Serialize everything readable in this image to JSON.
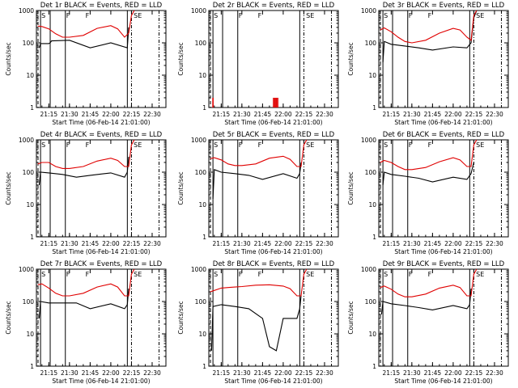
{
  "figure": {
    "shared_xlabel": "Start Time (06-Feb-14 21:01:00)",
    "shared_ylabel": "Counts/sec",
    "x_tick_labels": [
      "21:15",
      "21:30",
      "21:45",
      "22:00",
      "22:15",
      "22:30"
    ],
    "y_tick_labels": [
      "1",
      "10",
      "100",
      "1000"
    ],
    "region_markers": [
      "S",
      "F",
      "F",
      "SE"
    ],
    "colors": {
      "events": "#000000",
      "lld": "#e00000"
    }
  },
  "chart_data": [
    {
      "type": "line",
      "title": "Det 1r BLACK = Events, RED = LLD",
      "xlabel": "Start Time (06-Feb-14 21:01:00)",
      "ylabel": "Counts/sec",
      "ylog": true,
      "ylim": [
        1,
        1000
      ],
      "series": [
        {
          "name": "Events",
          "color": "#000000",
          "x": [
            "21:07",
            "21:08",
            "21:09",
            "21:15",
            "21:16",
            "21:17",
            "21:30",
            "21:45",
            "22:00",
            "22:12",
            "22:13"
          ],
          "values": [
            null,
            70,
            95,
            95,
            100,
            115,
            120,
            70,
            100,
            70,
            300
          ]
        },
        {
          "name": "LLD",
          "color": "#e00000",
          "x": [
            "21:07",
            "21:10",
            "21:15",
            "21:20",
            "21:25",
            "21:30",
            "21:40",
            "21:50",
            "22:00",
            "22:05",
            "22:10",
            "22:13",
            "22:15",
            "22:17"
          ],
          "values": [
            330,
            320,
            270,
            190,
            150,
            150,
            170,
            280,
            340,
            270,
            150,
            200,
            700,
            1000
          ]
        }
      ]
    },
    {
      "type": "bar",
      "title": "Det 2r BLACK = Events, RED = LLD",
      "xlabel": "Start Time (06-Feb-14 21:01:00)",
      "ylabel": "Counts/sec",
      "ylog": true,
      "ylim": [
        1,
        1000
      ],
      "series": [
        {
          "name": "LLD",
          "color": "#e00000",
          "x": [
            "21:09",
            "21:53",
            "21:54",
            "21:55",
            "21:56"
          ],
          "values": [
            2,
            2,
            2,
            2,
            2
          ]
        }
      ]
    },
    {
      "type": "line",
      "title": "Det 3r BLACK = Events, RED = LLD",
      "xlabel": "Start Time (06-Feb-14 21:01:00)",
      "ylabel": "Counts/sec",
      "ylog": true,
      "ylim": [
        1,
        1000
      ],
      "series": [
        {
          "name": "Events",
          "color": "#000000",
          "x": [
            "21:09",
            "21:10",
            "21:15",
            "21:25",
            "21:35",
            "21:45",
            "22:00",
            "22:10",
            "22:13",
            "22:15",
            "22:17"
          ],
          "values": [
            25,
            110,
            90,
            80,
            70,
            60,
            75,
            70,
            100,
            600,
            1000
          ]
        },
        {
          "name": "LLD",
          "color": "#e00000",
          "x": [
            "21:07",
            "21:10",
            "21:15",
            "21:20",
            "21:25",
            "21:30",
            "21:40",
            "21:50",
            "22:00",
            "22:05",
            "22:10",
            "22:13",
            "22:15",
            "22:17"
          ],
          "values": [
            250,
            290,
            220,
            150,
            110,
            100,
            120,
            200,
            280,
            250,
            150,
            120,
            700,
            1000
          ]
        }
      ]
    },
    {
      "type": "line",
      "title": "Det 4r BLACK = Events, RED = LLD",
      "xlabel": "Start Time (06-Feb-14 21:01:00)",
      "ylabel": "Counts/sec",
      "ylog": true,
      "ylim": [
        1,
        1000
      ],
      "series": [
        {
          "name": "Events",
          "color": "#000000",
          "x": [
            "21:08",
            "21:09",
            "21:15",
            "21:25",
            "21:35",
            "21:45",
            "22:00",
            "22:10",
            "22:12",
            "22:13"
          ],
          "values": [
            40,
            100,
            95,
            85,
            70,
            80,
            95,
            70,
            100,
            300
          ]
        },
        {
          "name": "LLD",
          "color": "#e00000",
          "x": [
            "21:07",
            "21:10",
            "21:15",
            "21:20",
            "21:25",
            "21:30",
            "21:40",
            "21:50",
            "22:00",
            "22:05",
            "22:10",
            "22:13",
            "22:15",
            "22:17"
          ],
          "values": [
            180,
            200,
            200,
            150,
            130,
            130,
            150,
            220,
            270,
            230,
            150,
            150,
            700,
            1000
          ]
        }
      ]
    },
    {
      "type": "line",
      "title": "Det 5r BLACK = Events, RED = LLD",
      "xlabel": "Start Time (06-Feb-14 21:01:00)",
      "ylabel": "Counts/sec",
      "ylog": true,
      "ylim": [
        1,
        1000
      ],
      "series": [
        {
          "name": "Events",
          "color": "#000000",
          "x": [
            "21:09",
            "21:10",
            "21:15",
            "21:25",
            "21:35",
            "21:45",
            "22:00",
            "22:10",
            "22:12",
            "22:13"
          ],
          "values": [
            15,
            120,
            100,
            90,
            80,
            60,
            90,
            65,
            90,
            200
          ]
        },
        {
          "name": "LLD",
          "color": "#e00000",
          "x": [
            "21:07",
            "21:10",
            "21:15",
            "21:20",
            "21:25",
            "21:30",
            "21:40",
            "21:50",
            "22:00",
            "22:05",
            "22:10",
            "22:13",
            "22:15",
            "22:17"
          ],
          "values": [
            260,
            280,
            240,
            180,
            160,
            160,
            180,
            270,
            310,
            250,
            150,
            150,
            700,
            1000
          ]
        }
      ]
    },
    {
      "type": "line",
      "title": "Det 6r BLACK = Events, RED = LLD",
      "xlabel": "Start Time (06-Feb-14 21:01:00)",
      "ylabel": "Counts/sec",
      "ylog": true,
      "ylim": [
        1,
        1000
      ],
      "series": [
        {
          "name": "Events",
          "color": "#000000",
          "x": [
            "21:09",
            "21:10",
            "21:15",
            "21:25",
            "21:35",
            "21:45",
            "22:00",
            "22:10",
            "22:13",
            "22:15"
          ],
          "values": [
            40,
            100,
            85,
            75,
            65,
            50,
            70,
            60,
            90,
            200
          ]
        },
        {
          "name": "LLD",
          "color": "#e00000",
          "x": [
            "21:07",
            "21:10",
            "21:15",
            "21:20",
            "21:25",
            "21:30",
            "21:40",
            "21:50",
            "22:00",
            "22:05",
            "22:10",
            "22:13",
            "22:15",
            "22:17"
          ],
          "values": [
            200,
            230,
            200,
            150,
            120,
            120,
            140,
            210,
            280,
            240,
            150,
            150,
            700,
            1000
          ]
        }
      ]
    },
    {
      "type": "line",
      "title": "Det 7r BLACK = Events, RED = LLD",
      "xlabel": "Start Time (06-Feb-14 21:01:00)",
      "ylabel": "Counts/sec",
      "ylog": true,
      "ylim": [
        1,
        1000
      ],
      "series": [
        {
          "name": "Events",
          "color": "#000000",
          "x": [
            "21:08",
            "21:09",
            "21:15",
            "21:25",
            "21:35",
            "21:45",
            "22:00",
            "22:10",
            "22:12",
            "22:13"
          ],
          "values": [
            30,
            100,
            90,
            90,
            90,
            60,
            85,
            60,
            80,
            250
          ]
        },
        {
          "name": "LLD",
          "color": "#e00000",
          "x": [
            "21:07",
            "21:10",
            "21:15",
            "21:20",
            "21:25",
            "21:30",
            "21:40",
            "21:50",
            "22:00",
            "22:05",
            "22:10",
            "22:13",
            "22:15",
            "22:17"
          ],
          "values": [
            330,
            350,
            260,
            180,
            150,
            150,
            180,
            280,
            350,
            280,
            150,
            150,
            700,
            1000
          ]
        }
      ]
    },
    {
      "type": "line",
      "title": "Det 8r BLACK = Events, RED = LLD",
      "xlabel": "Start Time (06-Feb-14 21:01:00)",
      "ylabel": "Counts/sec",
      "ylog": true,
      "ylim": [
        1,
        1000
      ],
      "series": [
        {
          "name": "Events",
          "color": "#000000",
          "x": [
            "21:08",
            "21:09",
            "21:15",
            "21:25",
            "21:35",
            "21:45",
            "21:50",
            "21:55",
            "22:00",
            "22:10",
            "22:12",
            "22:13"
          ],
          "values": [
            3,
            70,
            80,
            70,
            60,
            30,
            4,
            3,
            30,
            30,
            60,
            150
          ]
        },
        {
          "name": "LLD",
          "color": "#e00000",
          "x": [
            "21:07",
            "21:10",
            "21:15",
            "21:20",
            "21:25",
            "21:30",
            "21:40",
            "21:50",
            "22:00",
            "22:05",
            "22:10",
            "22:13",
            "22:15",
            "22:17"
          ],
          "values": [
            200,
            220,
            260,
            270,
            280,
            290,
            320,
            330,
            300,
            250,
            150,
            150,
            700,
            1000
          ]
        }
      ]
    },
    {
      "type": "line",
      "title": "Det 9r BLACK = Events, RED = LLD",
      "xlabel": "Start Time (06-Feb-14 21:01:00)",
      "ylabel": "Counts/sec",
      "ylog": true,
      "ylim": [
        1,
        1000
      ],
      "series": [
        {
          "name": "Events",
          "color": "#000000",
          "x": [
            "21:08",
            "21:09",
            "21:15",
            "21:25",
            "21:35",
            "21:45",
            "22:00",
            "22:10",
            "22:12",
            "22:13"
          ],
          "values": [
            40,
            100,
            85,
            75,
            65,
            55,
            75,
            60,
            80,
            250
          ]
        },
        {
          "name": "LLD",
          "color": "#e00000",
          "x": [
            "21:07",
            "21:10",
            "21:15",
            "21:20",
            "21:25",
            "21:30",
            "21:40",
            "21:50",
            "22:00",
            "22:05",
            "22:10",
            "22:13",
            "22:15",
            "22:17"
          ],
          "values": [
            270,
            300,
            240,
            170,
            140,
            140,
            170,
            260,
            320,
            270,
            150,
            150,
            700,
            1000
          ]
        }
      ]
    }
  ]
}
